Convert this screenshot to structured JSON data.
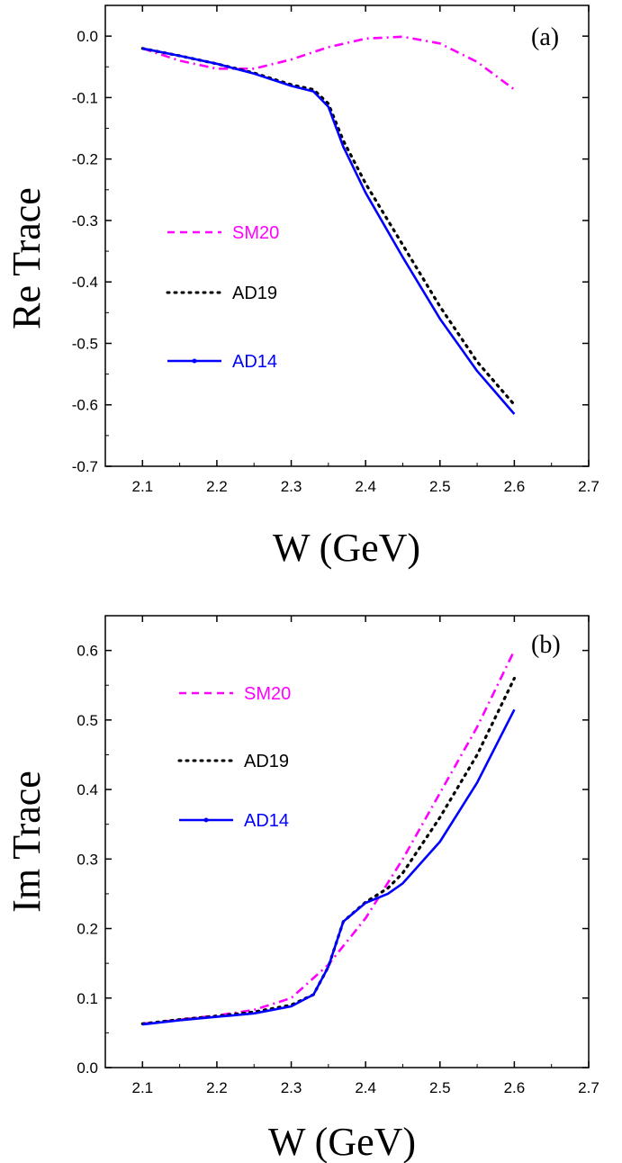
{
  "chart_data": [
    {
      "type": "line",
      "panel_label": "(a)",
      "xlabel": "W (GeV)",
      "ylabel": "Re Trace",
      "xlim": [
        2.05,
        2.7
      ],
      "ylim": [
        -0.7,
        0.05
      ],
      "xticks": [
        "2.1",
        "2.2",
        "2.3",
        "2.4",
        "2.5",
        "2.6",
        "2.7"
      ],
      "yticks": [
        "0.0",
        "-0.1",
        "-0.2",
        "-0.3",
        "-0.4",
        "-0.5",
        "-0.6",
        "-0.7"
      ],
      "legend_position": "left-middle",
      "series": [
        {
          "name": "SM20",
          "color": "#ff00ff",
          "style": "dash-dot",
          "x": [
            2.1,
            2.15,
            2.2,
            2.25,
            2.3,
            2.35,
            2.4,
            2.45,
            2.5,
            2.55,
            2.6
          ],
          "y": [
            -0.02,
            -0.04,
            -0.053,
            -0.053,
            -0.038,
            -0.018,
            -0.004,
            -0.001,
            -0.012,
            -0.042,
            -0.087
          ]
        },
        {
          "name": "AD19",
          "color": "#000000",
          "style": "dotted",
          "x": [
            2.1,
            2.15,
            2.2,
            2.25,
            2.3,
            2.33,
            2.35,
            2.37,
            2.4,
            2.45,
            2.5,
            2.55,
            2.6
          ],
          "y": [
            -0.02,
            -0.032,
            -0.045,
            -0.06,
            -0.079,
            -0.087,
            -0.11,
            -0.17,
            -0.24,
            -0.34,
            -0.44,
            -0.53,
            -0.6
          ]
        },
        {
          "name": "AD14",
          "color": "#0000ff",
          "style": "solid",
          "x": [
            2.1,
            2.15,
            2.2,
            2.25,
            2.3,
            2.33,
            2.35,
            2.37,
            2.4,
            2.45,
            2.5,
            2.55,
            2.6
          ],
          "y": [
            -0.02,
            -0.032,
            -0.045,
            -0.061,
            -0.081,
            -0.09,
            -0.115,
            -0.18,
            -0.255,
            -0.36,
            -0.46,
            -0.545,
            -0.615
          ]
        }
      ]
    },
    {
      "type": "line",
      "panel_label": "(b)",
      "xlabel": "W (GeV)",
      "ylabel": "Im Trace",
      "xlim": [
        2.05,
        2.7
      ],
      "ylim": [
        0.0,
        0.65
      ],
      "xticks": [
        "2.1",
        "2.2",
        "2.3",
        "2.4",
        "2.5",
        "2.6",
        "2.7"
      ],
      "yticks": [
        "0.0",
        "0.1",
        "0.2",
        "0.3",
        "0.4",
        "0.5",
        "0.6"
      ],
      "legend_position": "top-left",
      "series": [
        {
          "name": "SM20",
          "color": "#ff00ff",
          "style": "dash-dot",
          "x": [
            2.1,
            2.15,
            2.2,
            2.25,
            2.3,
            2.35,
            2.4,
            2.45,
            2.5,
            2.55,
            2.6
          ],
          "y": [
            0.063,
            0.069,
            0.075,
            0.083,
            0.1,
            0.148,
            0.215,
            0.3,
            0.395,
            0.49,
            0.6
          ]
        },
        {
          "name": "AD19",
          "color": "#000000",
          "style": "dotted",
          "x": [
            2.1,
            2.15,
            2.2,
            2.25,
            2.3,
            2.33,
            2.35,
            2.37,
            2.4,
            2.43,
            2.45,
            2.5,
            2.55,
            2.6
          ],
          "y": [
            0.063,
            0.069,
            0.074,
            0.08,
            0.09,
            0.105,
            0.145,
            0.21,
            0.238,
            0.258,
            0.28,
            0.36,
            0.45,
            0.56
          ]
        },
        {
          "name": "AD14",
          "color": "#0000ff",
          "style": "solid",
          "x": [
            2.1,
            2.15,
            2.2,
            2.25,
            2.3,
            2.33,
            2.35,
            2.37,
            2.4,
            2.43,
            2.45,
            2.5,
            2.55,
            2.6
          ],
          "y": [
            0.062,
            0.068,
            0.073,
            0.078,
            0.088,
            0.105,
            0.145,
            0.21,
            0.237,
            0.25,
            0.265,
            0.325,
            0.41,
            0.515
          ]
        }
      ]
    }
  ]
}
